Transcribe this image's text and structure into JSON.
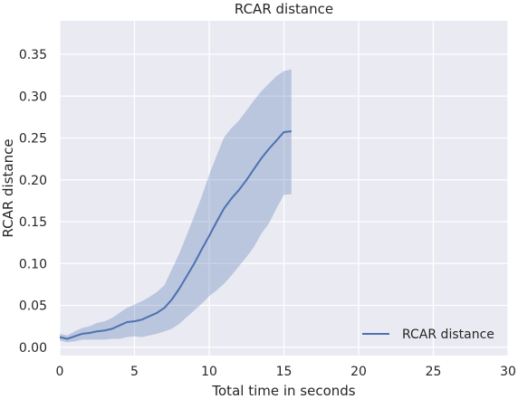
{
  "chart_data": {
    "type": "line",
    "title": "RCAR distance",
    "xlabel": "Total time in seconds",
    "ylabel": "RCAR distance",
    "xlim": [
      0,
      30
    ],
    "ylim": [
      -0.01,
      0.39
    ],
    "xticks": [
      0,
      5,
      10,
      15,
      20,
      25,
      30
    ],
    "yticks": [
      0.0,
      0.05,
      0.1,
      0.15,
      0.2,
      0.25,
      0.3,
      0.35
    ],
    "xtick_labels": [
      "0",
      "5",
      "10",
      "15",
      "20",
      "25",
      "30"
    ],
    "ytick_labels": [
      "0.00",
      "0.05",
      "0.10",
      "0.15",
      "0.20",
      "0.25",
      "0.30",
      "0.35"
    ],
    "grid": true,
    "legend_position": "bottom-right",
    "colors": {
      "background": "#eaeaf2",
      "grid": "#ffffff",
      "line": "#4c72b0",
      "band": "#4c72b0"
    },
    "series": [
      {
        "name": "RCAR distance",
        "x": [
          0,
          0.5,
          1,
          1.5,
          2,
          2.5,
          3,
          3.5,
          4,
          4.5,
          5,
          5.5,
          6,
          6.5,
          7,
          7.5,
          8,
          8.5,
          9,
          9.5,
          10,
          10.5,
          11,
          11.5,
          12,
          12.5,
          13,
          13.5,
          14,
          14.5,
          15,
          15.5
        ],
        "y": [
          0.012,
          0.01,
          0.013,
          0.016,
          0.017,
          0.019,
          0.02,
          0.022,
          0.026,
          0.03,
          0.031,
          0.033,
          0.037,
          0.041,
          0.047,
          0.057,
          0.07,
          0.085,
          0.1,
          0.117,
          0.133,
          0.15,
          0.166,
          0.178,
          0.188,
          0.2,
          0.213,
          0.226,
          0.237,
          0.247,
          0.257,
          0.258
        ],
        "lower": [
          0.008,
          0.006,
          0.007,
          0.009,
          0.009,
          0.009,
          0.009,
          0.01,
          0.01,
          0.012,
          0.013,
          0.012,
          0.014,
          0.016,
          0.019,
          0.022,
          0.028,
          0.036,
          0.044,
          0.052,
          0.061,
          0.068,
          0.076,
          0.086,
          0.097,
          0.108,
          0.12,
          0.136,
          0.148,
          0.166,
          0.182,
          0.183
        ],
        "upper": [
          0.016,
          0.014,
          0.019,
          0.023,
          0.025,
          0.029,
          0.031,
          0.035,
          0.041,
          0.047,
          0.051,
          0.055,
          0.06,
          0.066,
          0.074,
          0.093,
          0.112,
          0.134,
          0.157,
          0.18,
          0.206,
          0.229,
          0.251,
          0.262,
          0.271,
          0.283,
          0.295,
          0.306,
          0.315,
          0.324,
          0.33,
          0.332
        ]
      }
    ]
  }
}
